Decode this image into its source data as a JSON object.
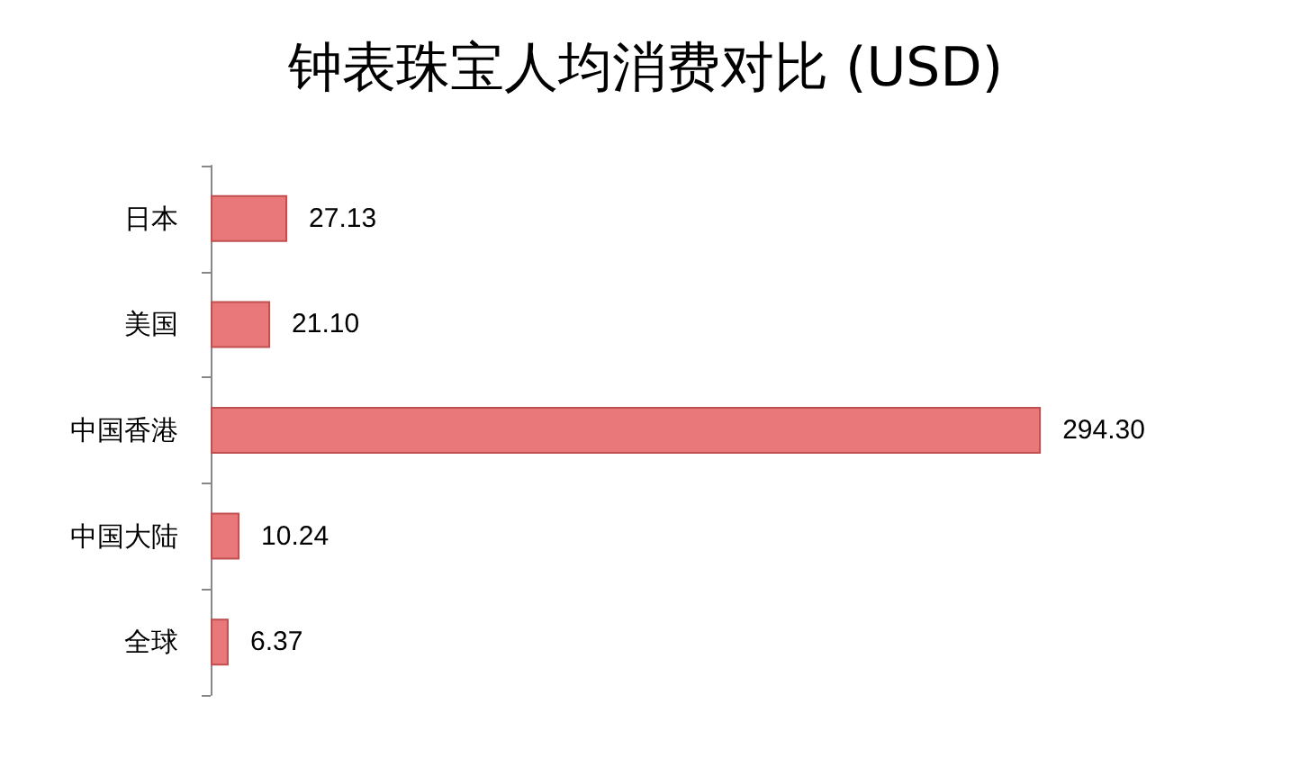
{
  "chart_data": {
    "type": "bar",
    "orientation": "horizontal",
    "title": "钟表珠宝人均消费对比 (USD)",
    "categories": [
      "日本",
      "美国",
      "中国香港",
      "中国大陆",
      "全球"
    ],
    "values": [
      27.13,
      21.1,
      294.3,
      10.24,
      6.37
    ],
    "value_labels": [
      "27.13",
      "21.10",
      "294.30",
      "10.24",
      "6.37"
    ],
    "color": "#e8787a"
  }
}
